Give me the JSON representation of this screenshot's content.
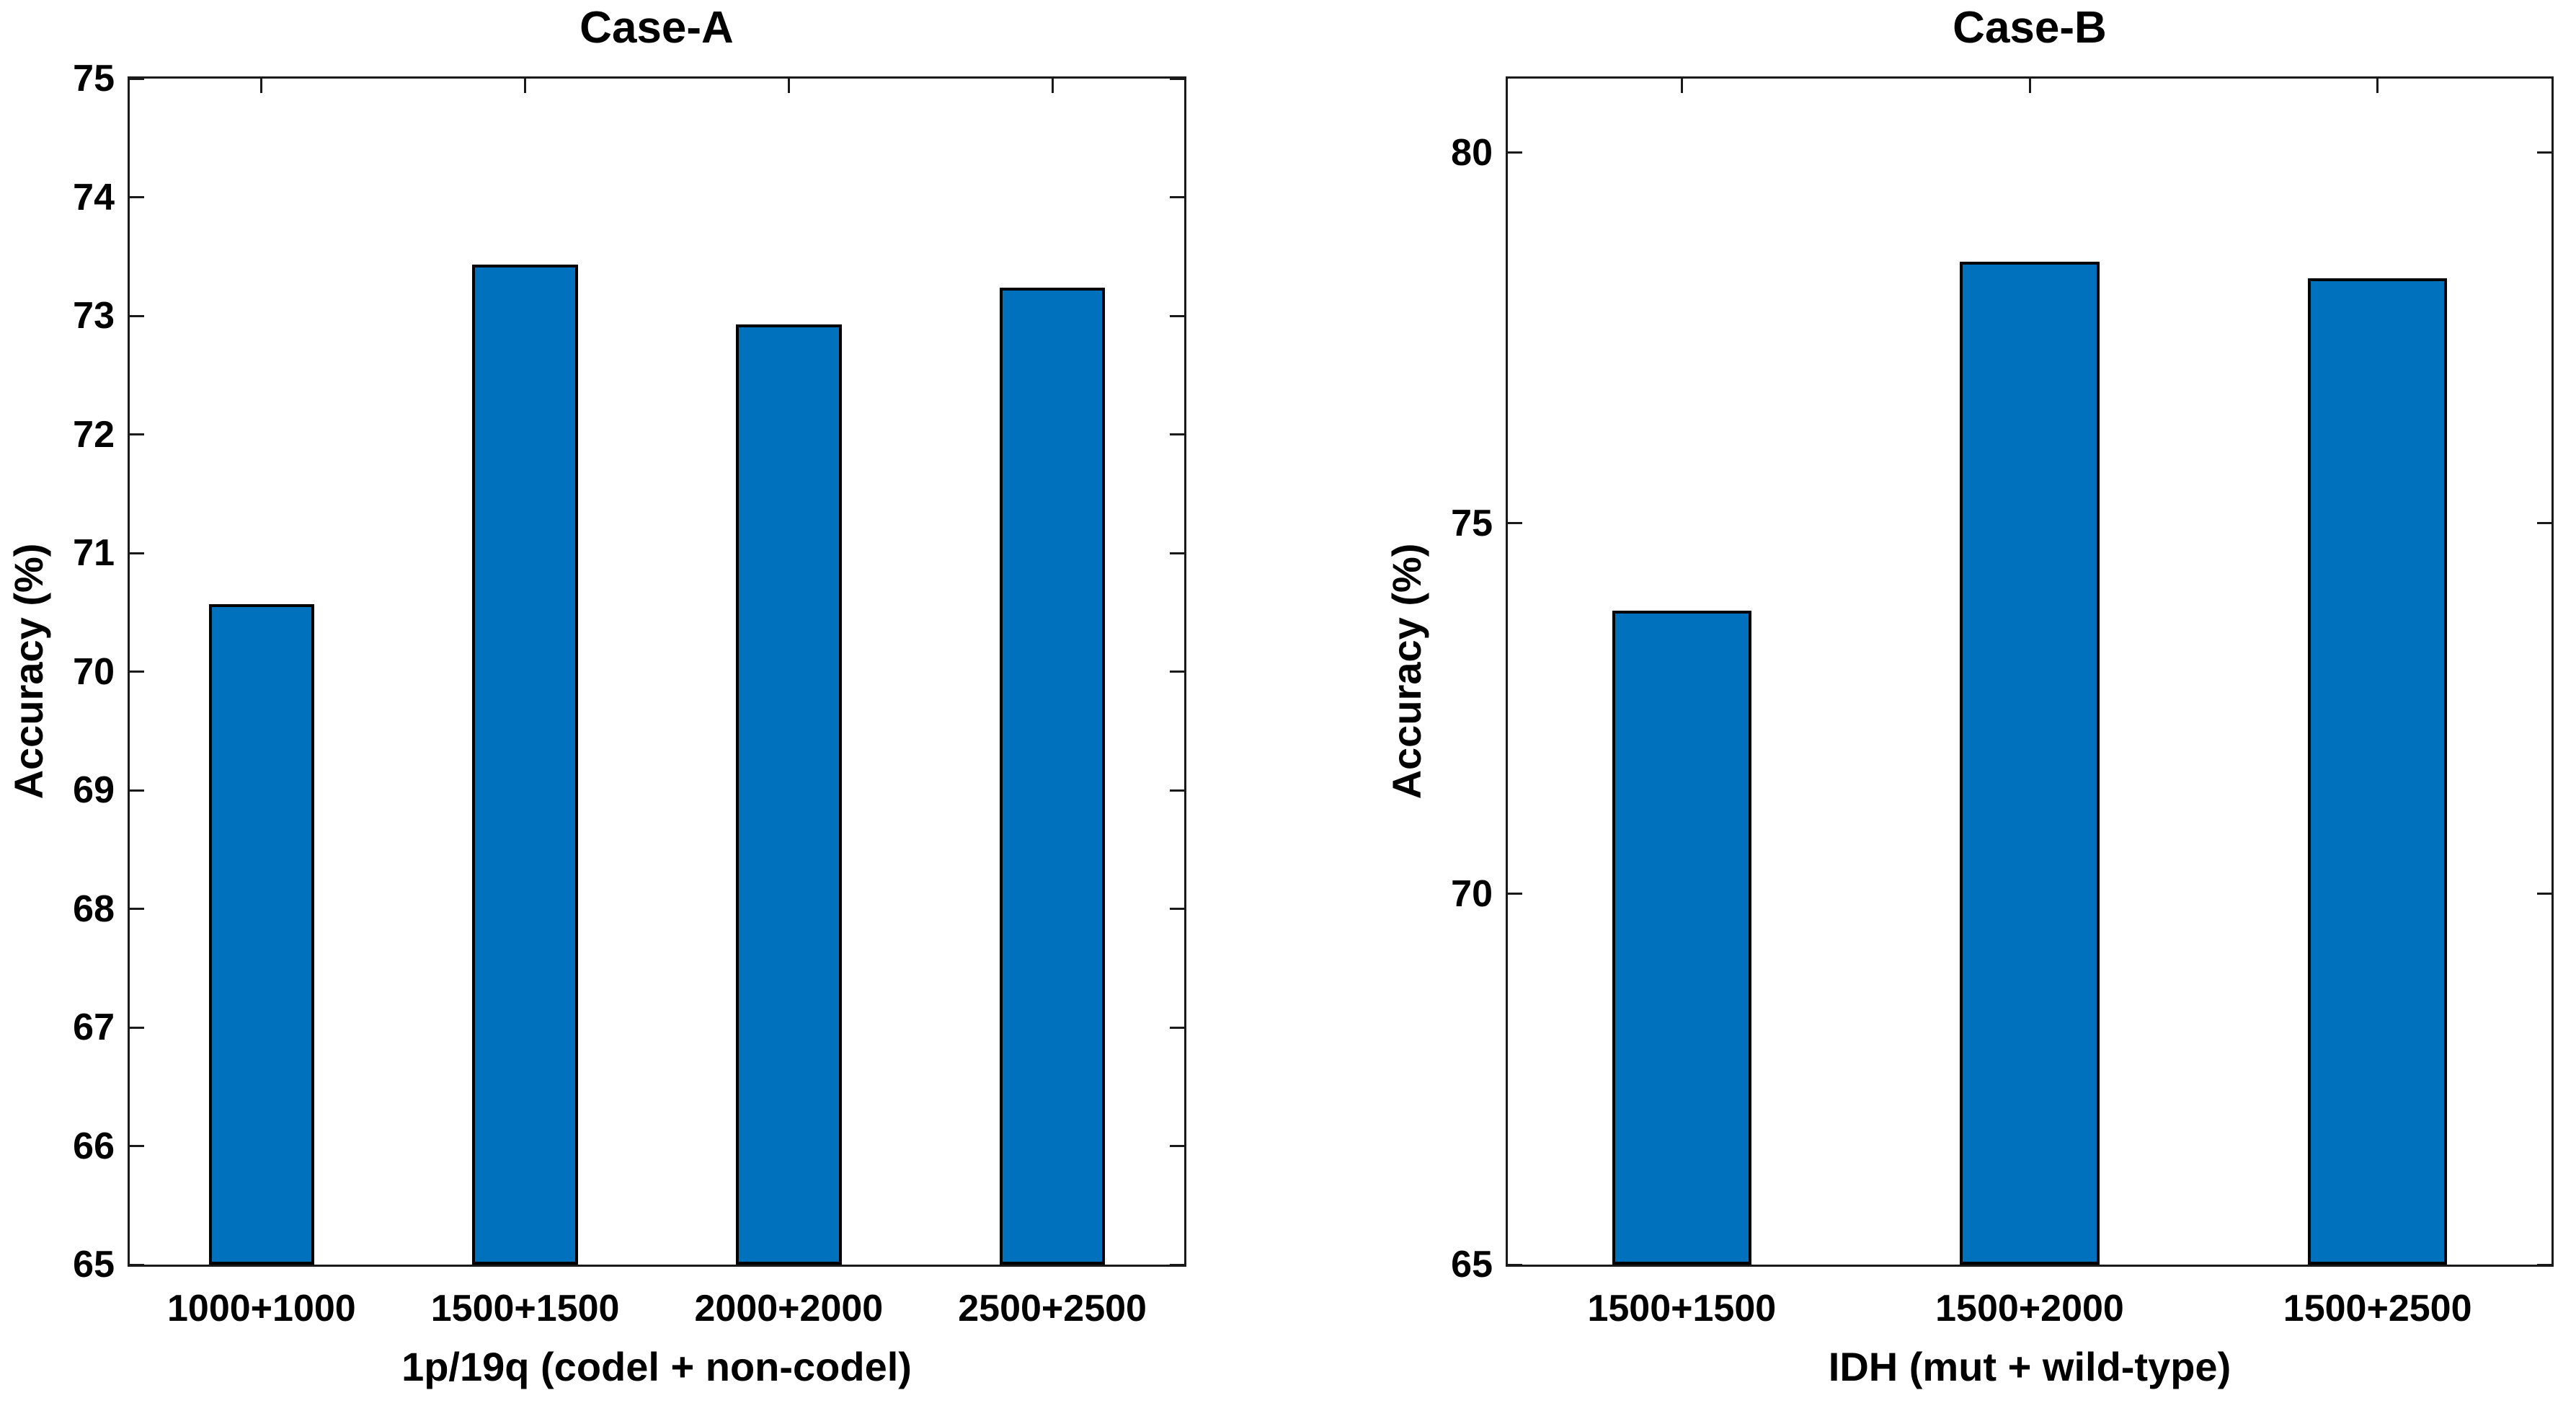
{
  "figure": {
    "background": "#ffffff",
    "axis_color": "#1a1a1a",
    "text_color": "#000000"
  },
  "chart_data": [
    {
      "type": "bar",
      "title": "Case-A",
      "xlabel": "1p/19q (codel + non-codel)",
      "ylabel": "Accuracy (%)",
      "categories": [
        "1000+1000",
        "1500+1500",
        "2000+2000",
        "2500+2500"
      ],
      "values": [
        70.57,
        73.43,
        72.93,
        73.24
      ],
      "ylim": [
        65,
        75
      ],
      "yticks": [
        65,
        66,
        67,
        68,
        69,
        70,
        71,
        72,
        73,
        74,
        75
      ],
      "grid": false,
      "bar_color": "#0072BD",
      "bar_edge_color": "#000000",
      "bar_width_fraction": 0.4
    },
    {
      "type": "bar",
      "title": "Case-B",
      "xlabel": "IDH (mut + wild-type)",
      "ylabel": "Accuracy (%)",
      "categories": [
        "1500+1500",
        "1500+2000",
        "1500+2500"
      ],
      "values": [
        73.82,
        78.53,
        78.31
      ],
      "ylim": [
        65,
        81
      ],
      "yticks": [
        65,
        70,
        75,
        80
      ],
      "grid": false,
      "bar_color": "#0072BD",
      "bar_edge_color": "#000000",
      "bar_width_fraction": 0.4
    }
  ]
}
